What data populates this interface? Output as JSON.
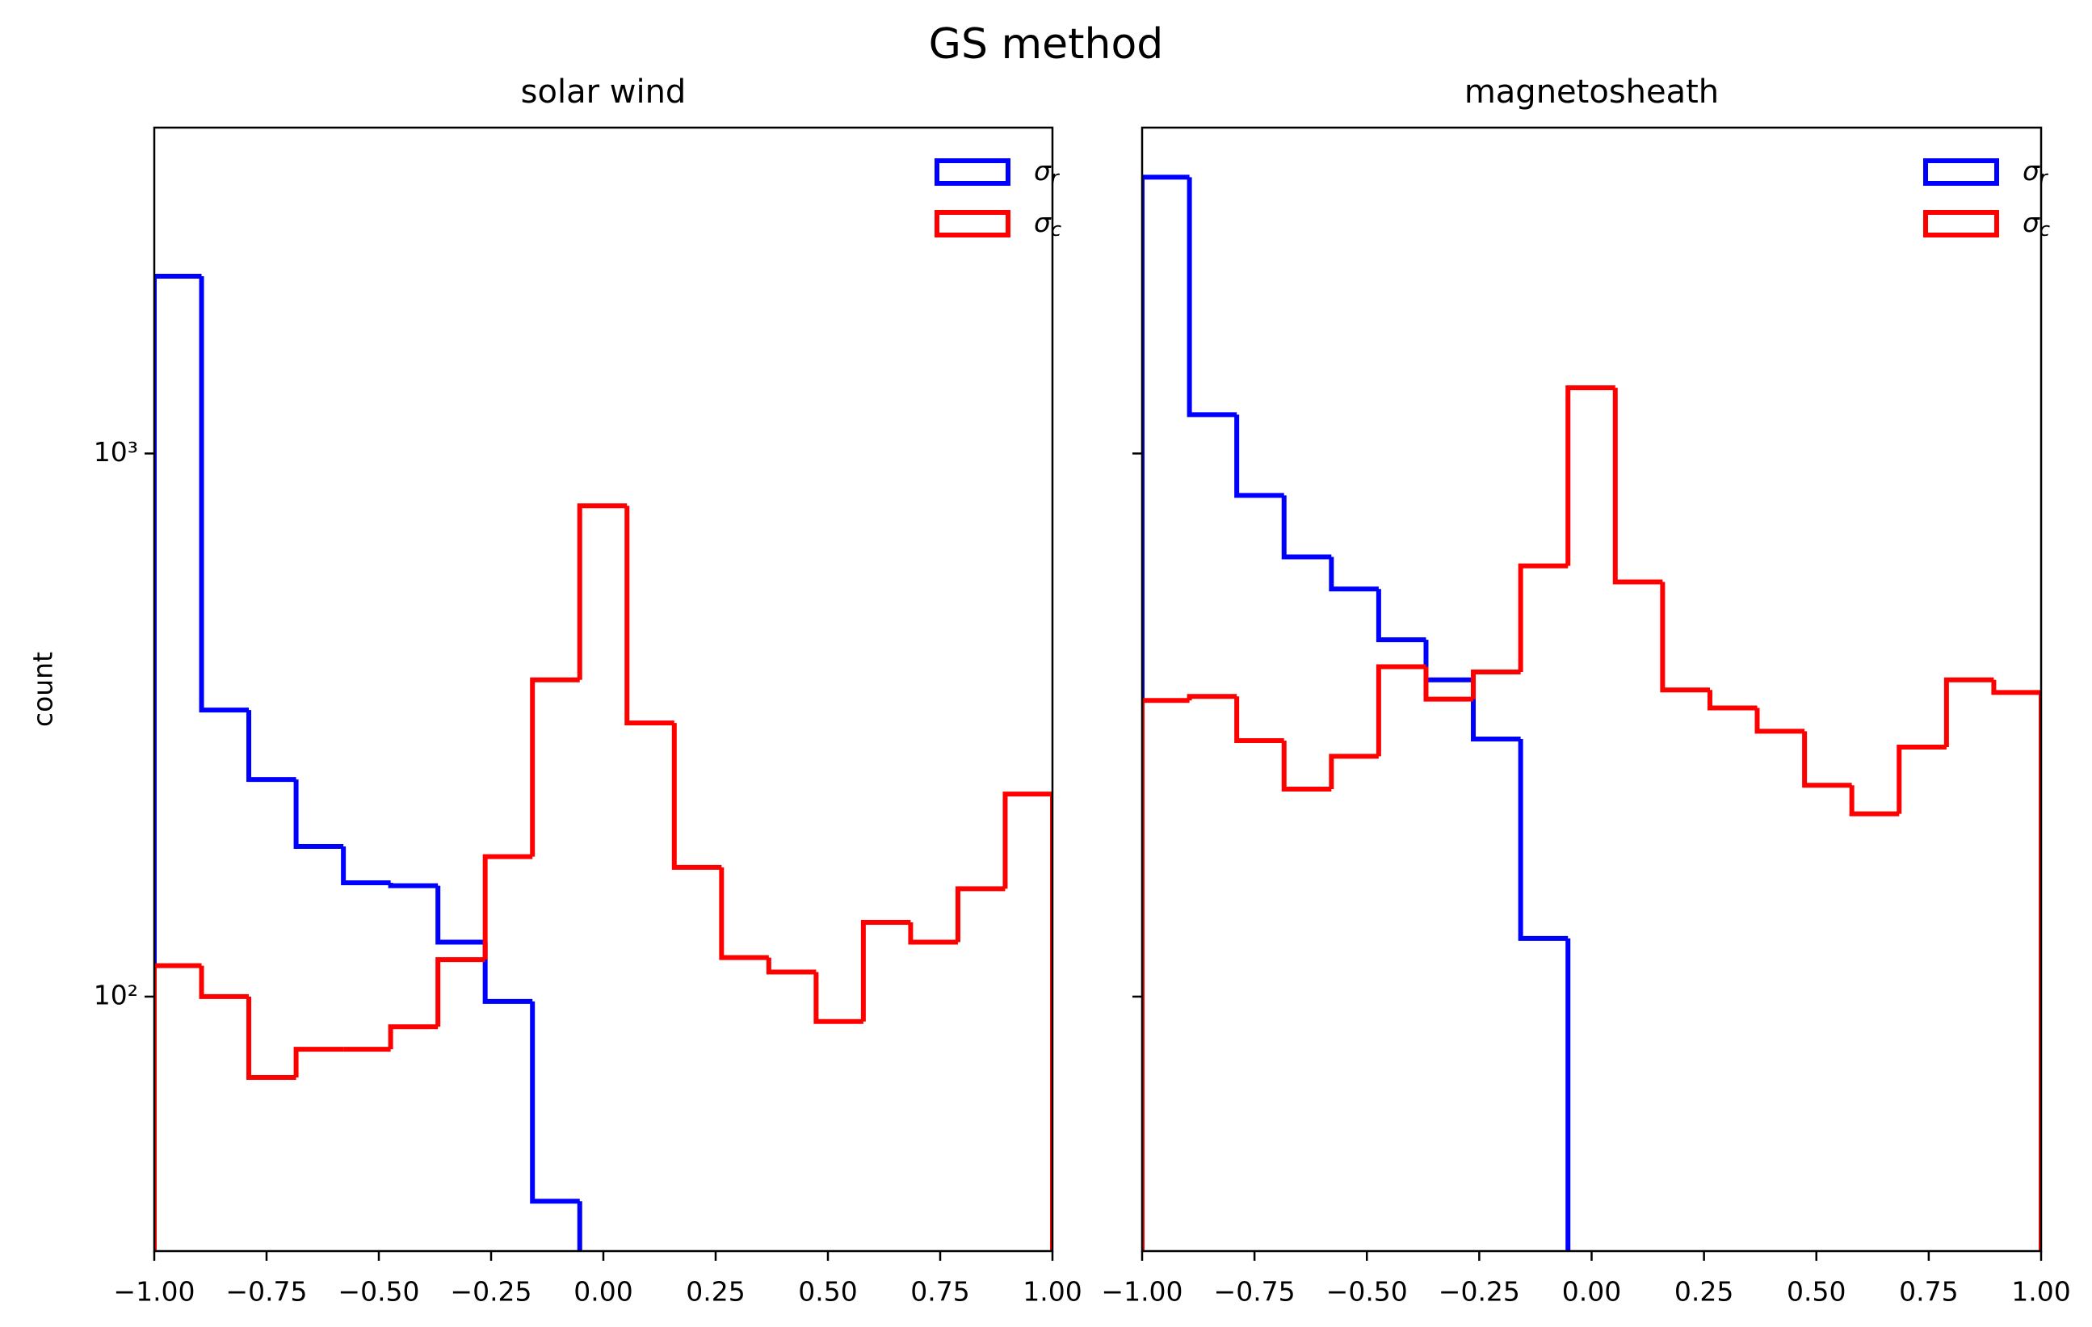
{
  "title": "GS method",
  "chart_data": [
    {
      "type": "histogram",
      "title": "solar wind",
      "ylabel": "count",
      "bins": [
        -1,
        -0.8947,
        -0.7895,
        -0.6842,
        -0.5789,
        -0.4737,
        -0.3684,
        -0.2632,
        -0.1579,
        -0.0526,
        0.0526,
        0.1579,
        0.2632,
        0.3684,
        0.4737,
        0.5789,
        0.6842,
        0.7895,
        0.8947,
        1
      ],
      "series": [
        {
          "name": "σr",
          "color": "#0000ff",
          "values": [
            2120,
            337,
            251,
            189,
            162,
            160,
            126,
            98,
            42,
            0,
            0,
            0,
            0,
            0,
            0,
            0,
            0,
            0,
            0
          ]
        },
        {
          "name": "σc",
          "color": "#ff0000",
          "values": [
            114,
            100,
            71,
            80,
            80,
            88,
            117,
            181,
            383,
            801,
            319,
            173,
            118,
            111,
            90,
            137,
            126,
            158,
            236
          ]
        }
      ],
      "xlim": [
        -1,
        1
      ],
      "xticks": [
        {
          "value": -1,
          "label": "−1.00"
        },
        {
          "value": -0.75,
          "label": "−0.75"
        },
        {
          "value": -0.5,
          "label": "−0.50"
        },
        {
          "value": -0.25,
          "label": "−0.25"
        },
        {
          "value": 0,
          "label": "0.00"
        },
        {
          "value": 0.25,
          "label": "0.25"
        },
        {
          "value": 0.5,
          "label": "0.50"
        },
        {
          "value": 0.75,
          "label": "0.75"
        },
        {
          "value": 1,
          "label": "1.00"
        }
      ],
      "ylim": [
        34,
        3981
      ],
      "y_log_scale": true,
      "yticks": [
        {
          "value": 100,
          "label": "10²"
        },
        {
          "value": 1000,
          "label": "10³"
        }
      ],
      "legend": "upper-right"
    },
    {
      "type": "histogram",
      "title": "magnetosheath",
      "bins": [
        -1,
        -0.8947,
        -0.7895,
        -0.6842,
        -0.5789,
        -0.4737,
        -0.3684,
        -0.2632,
        -0.1579,
        -0.0526,
        0.0526,
        0.1579,
        0.2632,
        0.3684,
        0.4737,
        0.5789,
        0.6842,
        0.7895,
        0.8947,
        1
      ],
      "series": [
        {
          "name": "σr",
          "color": "#0000ff",
          "values": [
            3226,
            1179,
            837,
            645,
            563,
            454,
            383,
            298,
            128,
            0,
            0,
            0,
            0,
            0,
            0,
            0,
            0,
            0,
            0
          ]
        },
        {
          "name": "σc",
          "color": "#ff0000",
          "values": [
            351,
            357,
            296,
            241,
            277,
            405,
            353,
            396,
            621,
            1321,
            580,
            367,
            340,
            308,
            245,
            217,
            288,
            383,
            363
          ]
        }
      ],
      "xlim": [
        -1,
        1
      ],
      "xticks": [
        {
          "value": -1,
          "label": "−1.00"
        },
        {
          "value": -0.75,
          "label": "−0.75"
        },
        {
          "value": -0.5,
          "label": "−0.50"
        },
        {
          "value": -0.25,
          "label": "−0.25"
        },
        {
          "value": 0,
          "label": "0.00"
        },
        {
          "value": 0.25,
          "label": "0.25"
        },
        {
          "value": 0.5,
          "label": "0.50"
        },
        {
          "value": 0.75,
          "label": "0.75"
        },
        {
          "value": 1,
          "label": "1.00"
        }
      ],
      "ylim": [
        34,
        3981
      ],
      "y_log_scale": true,
      "yticks": [
        {
          "value": 100
        },
        {
          "value": 1000
        }
      ],
      "legend": "upper-right"
    }
  ]
}
